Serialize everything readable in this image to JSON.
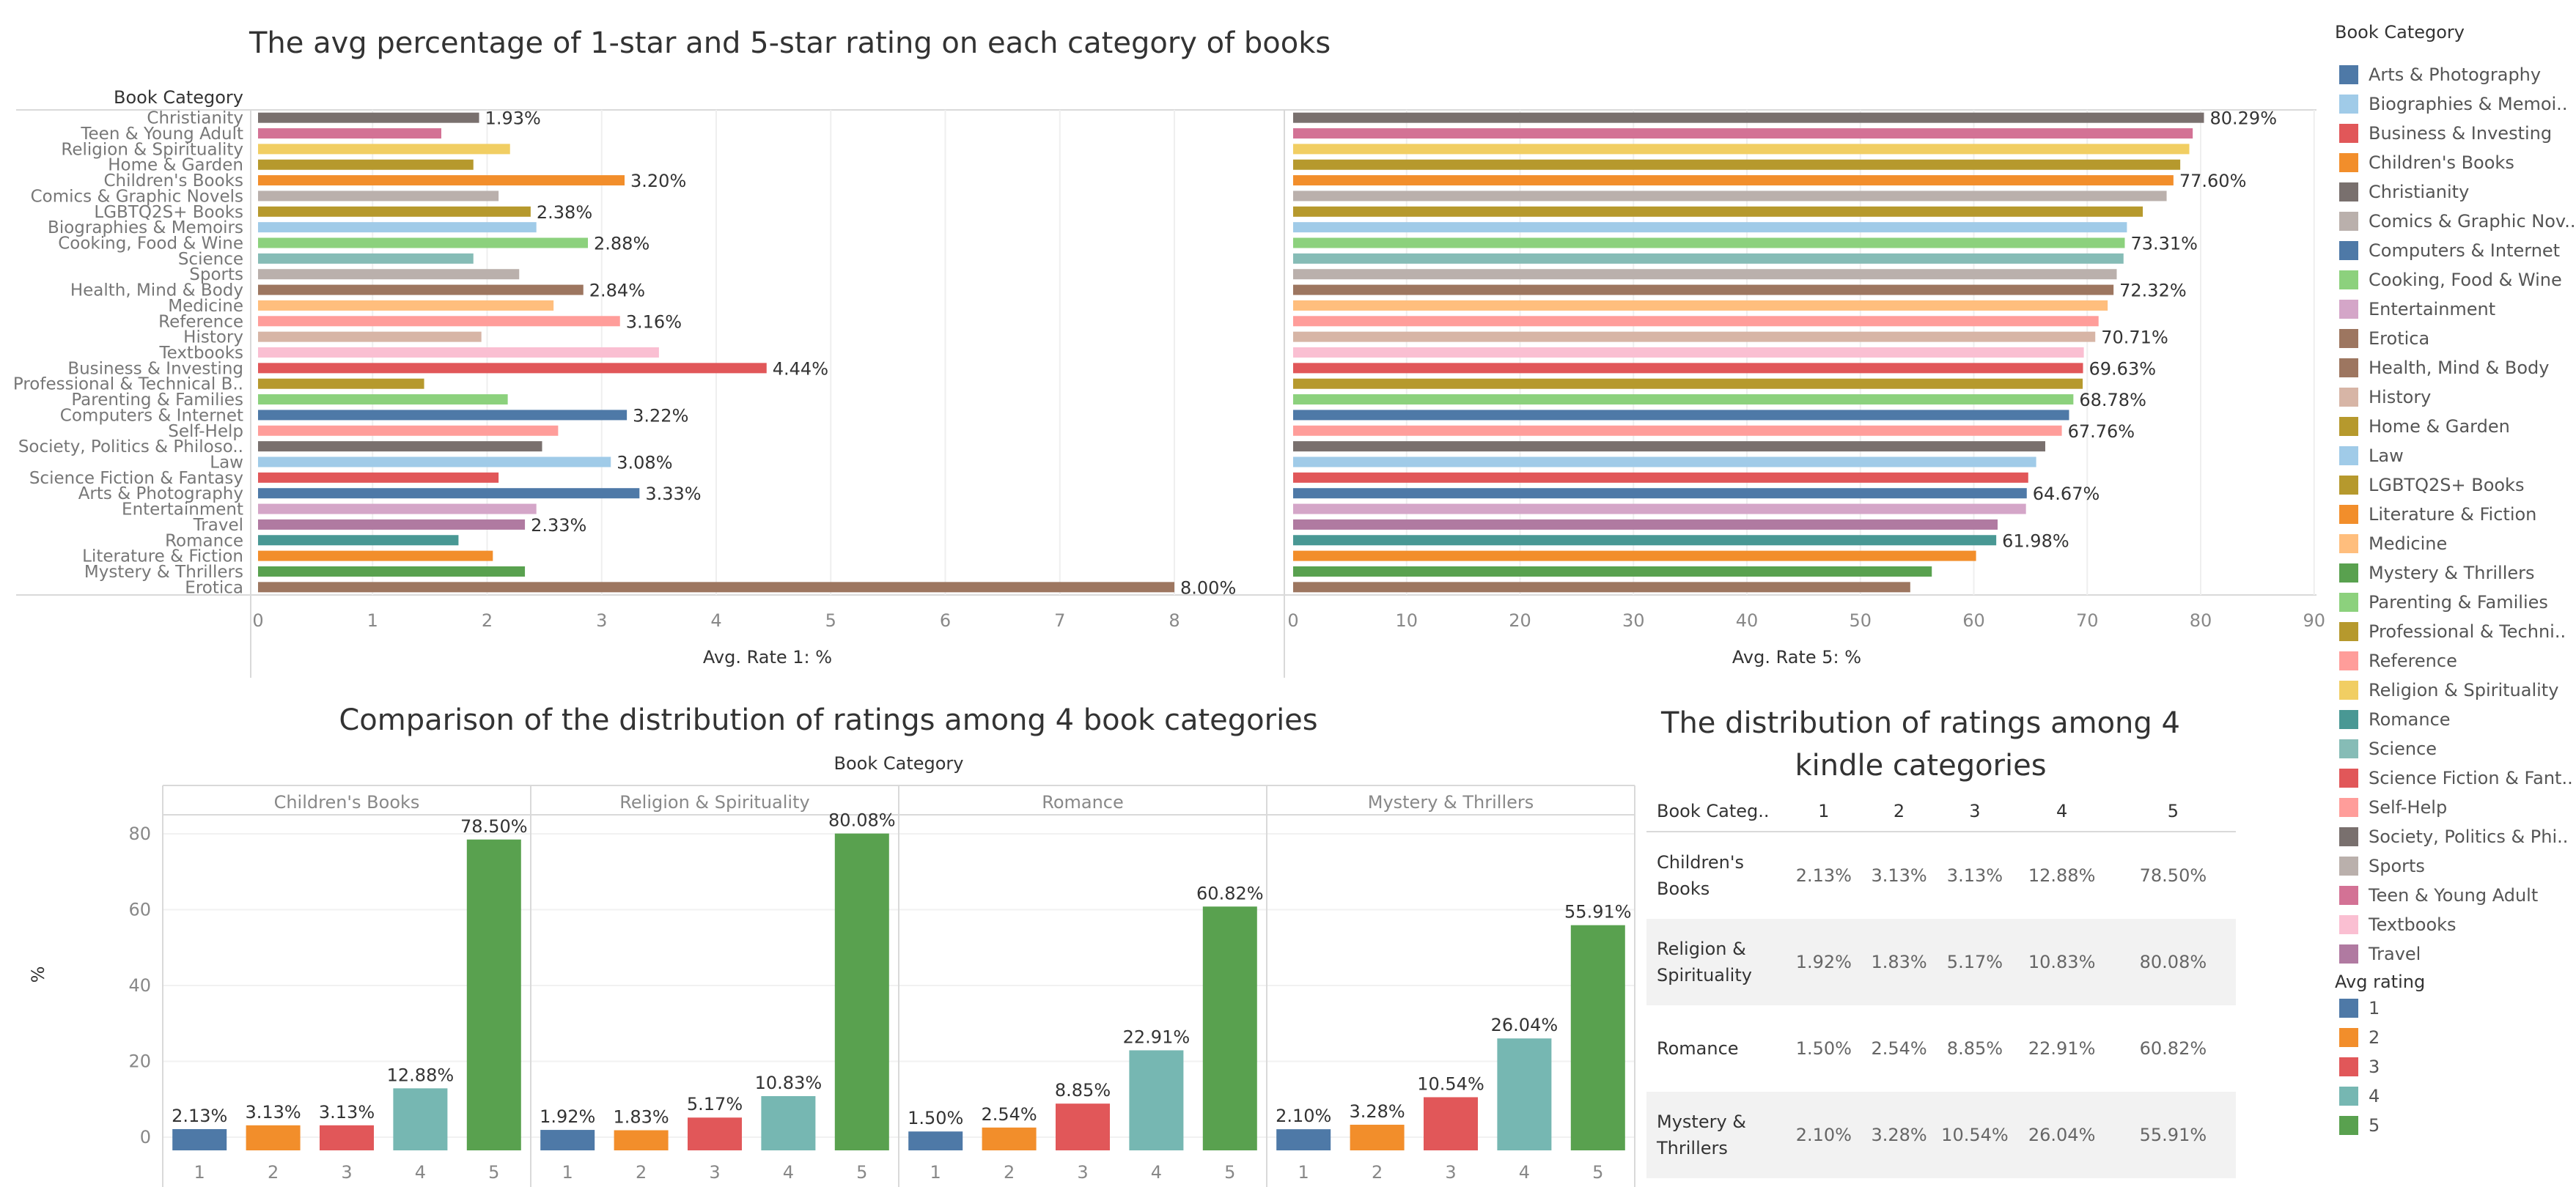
{
  "titles": {
    "top": "The avg percentage of 1-star and 5-star rating on each category of books",
    "bottom_left": "Comparison of the distribution of ratings among 4 book categories",
    "bottom_right": "The distribution of ratings among 4 kindle categories"
  },
  "chart_data": [
    {
      "type": "bar",
      "orientation": "horizontal",
      "row_header": "Book Category",
      "categories": [
        "Christianity",
        "Teen & Young Adult",
        "Religion & Spirituality",
        "Home & Garden",
        "Children's Books",
        "Comics & Graphic Novels",
        "LGBTQ2S+ Books",
        "Biographies & Memoirs",
        "Cooking, Food & Wine",
        "Science",
        "Sports",
        "Health, Mind & Body",
        "Medicine",
        "Reference",
        "History",
        "Textbooks",
        "Business & Investing",
        "Professional & Technical B..",
        "Parenting & Families",
        "Computers & Internet",
        "Self-Help",
        "Society, Politics & Philoso..",
        "Law",
        "Science Fiction & Fantasy",
        "Arts & Photography",
        "Entertainment",
        "Travel",
        "Romance",
        "Literature & Fiction",
        "Mystery & Thrillers",
        "Erotica"
      ],
      "values": [
        1.93,
        1.6,
        2.2,
        1.88,
        3.2,
        2.1,
        2.38,
        2.43,
        2.88,
        1.88,
        2.28,
        2.84,
        2.58,
        3.16,
        1.95,
        3.5,
        4.44,
        1.45,
        2.18,
        3.22,
        2.62,
        2.48,
        3.08,
        2.1,
        3.33,
        2.43,
        2.33,
        1.75,
        2.05,
        2.33,
        8.0
      ],
      "data_labels": {
        "0": "1.93%",
        "4": "3.20%",
        "6": "2.38%",
        "8": "2.88%",
        "11": "2.84%",
        "13": "3.16%",
        "16": "4.44%",
        "19": "3.22%",
        "22": "3.08%",
        "24": "3.33%",
        "26": "2.33%",
        "30": "8.00%"
      },
      "xlabel": "Avg. Rate 1: %",
      "xlim": [
        0,
        9
      ],
      "xticks": [
        "0",
        "1",
        "2",
        "3",
        "4",
        "5",
        "6",
        "7",
        "8"
      ],
      "grid": true
    },
    {
      "type": "bar",
      "orientation": "horizontal",
      "categories": [
        "Christianity",
        "Teen & Young Adult",
        "Religion & Spirituality",
        "Home & Garden",
        "Children's Books",
        "Comics & Graphic Novels",
        "LGBTQ2S+ Books",
        "Biographies & Memoirs",
        "Cooking, Food & Wine",
        "Science",
        "Sports",
        "Health, Mind & Body",
        "Medicine",
        "Reference",
        "History",
        "Textbooks",
        "Business & Investing",
        "Professional & Technical B..",
        "Parenting & Families",
        "Computers & Internet",
        "Self-Help",
        "Society, Politics & Philoso..",
        "Law",
        "Science Fiction & Fantasy",
        "Arts & Photography",
        "Entertainment",
        "Travel",
        "Romance",
        "Literature & Fiction",
        "Mystery & Thrillers",
        "Erotica"
      ],
      "values": [
        80.29,
        79.3,
        79.0,
        78.2,
        77.6,
        77.0,
        74.9,
        73.5,
        73.31,
        73.2,
        72.6,
        72.32,
        71.8,
        71.0,
        70.71,
        69.7,
        69.63,
        69.6,
        68.78,
        68.4,
        67.76,
        66.3,
        65.5,
        64.8,
        64.67,
        64.6,
        62.1,
        61.98,
        60.2,
        56.3,
        54.4
      ],
      "data_labels": {
        "0": "80.29%",
        "4": "77.60%",
        "8": "73.31%",
        "11": "72.32%",
        "14": "70.71%",
        "16": "69.63%",
        "18": "68.78%",
        "20": "67.76%",
        "24": "64.67%",
        "27": "61.98%"
      },
      "xlabel": "Avg. Rate 5: %",
      "xlim": [
        0,
        90
      ],
      "xticks": [
        "0",
        "10",
        "20",
        "30",
        "40",
        "50",
        "60",
        "70",
        "80",
        "90"
      ],
      "grid": true
    },
    {
      "type": "bar",
      "column_header": "Book Category",
      "panels": [
        "Children's Books",
        "Religion & Spirituality",
        "Romance",
        "Mystery & Thrillers"
      ],
      "categories": [
        "1",
        "2",
        "3",
        "4",
        "5"
      ],
      "series": [
        {
          "panel": "Children's Books",
          "values": [
            2.13,
            3.13,
            3.13,
            12.88,
            78.5
          ],
          "labels": [
            "2.13%",
            "3.13%",
            "3.13%",
            "12.88%",
            "78.50%"
          ]
        },
        {
          "panel": "Religion & Spirituality",
          "values": [
            1.92,
            1.83,
            5.17,
            10.83,
            80.08
          ],
          "labels": [
            "1.92%",
            "1.83%",
            "5.17%",
            "10.83%",
            "80.08%"
          ]
        },
        {
          "panel": "Romance",
          "values": [
            1.5,
            2.54,
            8.85,
            22.91,
            60.82
          ],
          "labels": [
            "1.50%",
            "2.54%",
            "8.85%",
            "22.91%",
            "60.82%"
          ]
        },
        {
          "panel": "Mystery & Thrillers",
          "values": [
            2.1,
            3.28,
            10.54,
            26.04,
            55.91
          ],
          "labels": [
            "2.10%",
            "3.28%",
            "10.54%",
            "26.04%",
            "55.91%"
          ]
        }
      ],
      "ylabel": "%",
      "yticks": [
        "0",
        "20",
        "40",
        "60",
        "80"
      ],
      "ylim": [
        -5,
        88
      ]
    },
    {
      "type": "table",
      "columns": [
        "Book Categ..",
        "1",
        "2",
        "3",
        "4",
        "5"
      ],
      "rows": [
        [
          "Children's Books",
          "2.13%",
          "3.13%",
          "3.13%",
          "12.88%",
          "78.50%"
        ],
        [
          "Religion & Spirituality",
          "1.92%",
          "1.83%",
          "5.17%",
          "10.83%",
          "80.08%"
        ],
        [
          "Romance",
          "1.50%",
          "2.54%",
          "8.85%",
          "22.91%",
          "60.82%"
        ],
        [
          "Mystery & Thrillers",
          "2.10%",
          "3.28%",
          "10.54%",
          "26.04%",
          "55.91%"
        ]
      ]
    }
  ],
  "legend_category": {
    "title": "Book Category",
    "items": [
      {
        "label": "Arts & Photography",
        "color": "#4e79a7"
      },
      {
        "label": "Biographies & Memoi..",
        "color": "#a0cbe8"
      },
      {
        "label": "Business & Investing",
        "color": "#e15759"
      },
      {
        "label": "Children's Books",
        "color": "#f28e2b"
      },
      {
        "label": "Christianity",
        "color": "#79706e"
      },
      {
        "label": "Comics & Graphic Nov..",
        "color": "#bab0ac"
      },
      {
        "label": "Computers & Internet",
        "color": "#4e79a7"
      },
      {
        "label": "Cooking, Food & Wine",
        "color": "#8cd17d"
      },
      {
        "label": "Entertainment",
        "color": "#d4a6c8"
      },
      {
        "label": "Erotica",
        "color": "#9d7660"
      },
      {
        "label": "Health, Mind & Body",
        "color": "#9d7660"
      },
      {
        "label": "History",
        "color": "#d7b5a6"
      },
      {
        "label": "Home & Garden",
        "color": "#b6992d"
      },
      {
        "label": "Law",
        "color": "#a0cbe8"
      },
      {
        "label": "LGBTQ2S+ Books",
        "color": "#b6992d"
      },
      {
        "label": "Literature & Fiction",
        "color": "#f28e2b"
      },
      {
        "label": "Medicine",
        "color": "#ffbe7d"
      },
      {
        "label": "Mystery & Thrillers",
        "color": "#59a14f"
      },
      {
        "label": "Parenting & Families",
        "color": "#8cd17d"
      },
      {
        "label": "Professional & Techni..",
        "color": "#b6992d"
      },
      {
        "label": "Reference",
        "color": "#ff9d9a"
      },
      {
        "label": "Religion & Spirituality",
        "color": "#f1ce63"
      },
      {
        "label": "Romance",
        "color": "#499894"
      },
      {
        "label": "Science",
        "color": "#86bcb6"
      },
      {
        "label": "Science Fiction & Fant..",
        "color": "#e15759"
      },
      {
        "label": "Self-Help",
        "color": "#ff9d9a"
      },
      {
        "label": "Society, Politics & Phi..",
        "color": "#79706e"
      },
      {
        "label": "Sports",
        "color": "#bab0ac"
      },
      {
        "label": "Teen & Young Adult",
        "color": "#d37295"
      },
      {
        "label": "Textbooks",
        "color": "#fabfd2"
      },
      {
        "label": "Travel",
        "color": "#b07aa1"
      }
    ]
  },
  "legend_rating": {
    "title": "Avg rating",
    "items": [
      {
        "label": "1",
        "color": "#4e79a7"
      },
      {
        "label": "2",
        "color": "#f28e2b"
      },
      {
        "label": "3",
        "color": "#e15759"
      },
      {
        "label": "4",
        "color": "#76b7b2"
      },
      {
        "label": "5",
        "color": "#59a14f"
      }
    ]
  },
  "category_colors": {
    "Christianity": "#79706e",
    "Teen & Young Adult": "#d37295",
    "Religion & Spirituality": "#f1ce63",
    "Home & Garden": "#b6992d",
    "Children's Books": "#f28e2b",
    "Comics & Graphic Novels": "#bab0ac",
    "LGBTQ2S+ Books": "#b6992d",
    "Biographies & Memoirs": "#a0cbe8",
    "Cooking, Food & Wine": "#8cd17d",
    "Science": "#86bcb6",
    "Sports": "#bab0ac",
    "Health, Mind & Body": "#9d7660",
    "Medicine": "#ffbe7d",
    "Reference": "#ff9d9a",
    "History": "#d7b5a6",
    "Textbooks": "#fabfd2",
    "Business & Investing": "#e15759",
    "Professional & Technical B..": "#b6992d",
    "Parenting & Families": "#8cd17d",
    "Computers & Internet": "#4e79a7",
    "Self-Help": "#ff9d9a",
    "Society, Politics & Philoso..": "#79706e",
    "Law": "#a0cbe8",
    "Science Fiction & Fantasy": "#e15759",
    "Arts & Photography": "#4e79a7",
    "Entertainment": "#d4a6c8",
    "Travel": "#b07aa1",
    "Romance": "#499894",
    "Literature & Fiction": "#f28e2b",
    "Mystery & Thrillers": "#59a14f",
    "Erotica": "#9d7660"
  }
}
